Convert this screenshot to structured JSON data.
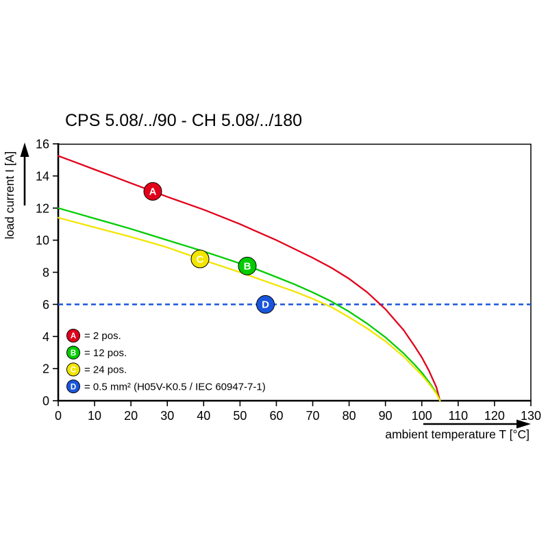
{
  "chart_data": {
    "type": "line",
    "title": "CPS 5.08/../90 - CH 5.08/../180",
    "xlabel": "ambient temperature T [°C]",
    "ylabel": "load current I [A]",
    "xlim": [
      0,
      130
    ],
    "ylim": [
      0,
      16
    ],
    "x_ticks": [
      0,
      10,
      20,
      30,
      40,
      50,
      60,
      70,
      80,
      90,
      100,
      110,
      120,
      130
    ],
    "y_ticks": [
      0,
      2,
      4,
      6,
      8,
      10,
      12,
      14,
      16
    ],
    "grid": false,
    "legend_position": "lower-left-inside",
    "series": [
      {
        "name": "A",
        "label": "= 2 pos.",
        "color": "#e2001a",
        "points": [
          [
            0,
            15.25
          ],
          [
            5,
            14.83
          ],
          [
            10,
            14.4
          ],
          [
            15,
            13.98
          ],
          [
            20,
            13.55
          ],
          [
            25,
            13.13
          ],
          [
            30,
            12.7
          ],
          [
            35,
            12.3
          ],
          [
            40,
            11.9
          ],
          [
            45,
            11.45
          ],
          [
            50,
            11.0
          ],
          [
            55,
            10.5
          ],
          [
            60,
            10.0
          ],
          [
            65,
            9.45
          ],
          [
            70,
            8.9
          ],
          [
            75,
            8.3
          ],
          [
            80,
            7.6
          ],
          [
            85,
            6.75
          ],
          [
            90,
            5.7
          ],
          [
            95,
            4.4
          ],
          [
            98,
            3.4
          ],
          [
            100,
            2.7
          ],
          [
            102,
            1.85
          ],
          [
            104,
            0.85
          ],
          [
            105,
            0
          ]
        ]
      },
      {
        "name": "B",
        "label": "= 12 pos.",
        "color": "#00cc00",
        "points": [
          [
            0,
            12.0
          ],
          [
            5,
            11.68
          ],
          [
            10,
            11.35
          ],
          [
            15,
            11.03
          ],
          [
            20,
            10.7
          ],
          [
            25,
            10.35
          ],
          [
            30,
            10.0
          ],
          [
            35,
            9.65
          ],
          [
            40,
            9.3
          ],
          [
            45,
            8.93
          ],
          [
            50,
            8.55
          ],
          [
            55,
            8.15
          ],
          [
            60,
            7.7
          ],
          [
            65,
            7.25
          ],
          [
            70,
            6.75
          ],
          [
            75,
            6.2
          ],
          [
            80,
            5.55
          ],
          [
            85,
            4.8
          ],
          [
            90,
            3.95
          ],
          [
            95,
            2.95
          ],
          [
            98,
            2.25
          ],
          [
            100,
            1.75
          ],
          [
            102,
            1.15
          ],
          [
            104,
            0.5
          ],
          [
            105,
            0
          ]
        ]
      },
      {
        "name": "C",
        "label": "= 24 pos.",
        "color": "#f2e500",
        "points": [
          [
            0,
            11.4
          ],
          [
            5,
            11.1
          ],
          [
            10,
            10.8
          ],
          [
            15,
            10.5
          ],
          [
            20,
            10.2
          ],
          [
            25,
            9.88
          ],
          [
            30,
            9.55
          ],
          [
            35,
            9.15
          ],
          [
            40,
            8.75
          ],
          [
            45,
            8.38
          ],
          [
            50,
            8.0
          ],
          [
            55,
            7.6
          ],
          [
            60,
            7.2
          ],
          [
            65,
            6.8
          ],
          [
            70,
            6.35
          ],
          [
            75,
            5.85
          ],
          [
            80,
            5.2
          ],
          [
            85,
            4.5
          ],
          [
            90,
            3.7
          ],
          [
            95,
            2.75
          ],
          [
            98,
            2.05
          ],
          [
            100,
            1.6
          ],
          [
            102,
            1.05
          ],
          [
            104,
            0.45
          ],
          [
            105,
            0
          ]
        ]
      }
    ],
    "reference_line": {
      "name": "D",
      "y": 6,
      "style": "dashed",
      "color": "#1a56db",
      "label": "= 0.5 mm² (H05V-K0.5 / IEC 60947-7-1)"
    },
    "markers": [
      {
        "label": "A",
        "x": 26,
        "y": 13.04,
        "color": "#e2001a"
      },
      {
        "label": "C",
        "x": 39,
        "y": 8.83,
        "color": "#f2e500"
      },
      {
        "label": "B",
        "x": 52,
        "y": 8.39,
        "color": "#00cc00"
      },
      {
        "label": "D",
        "x": 57,
        "y": 6.0,
        "color": "#1a56db"
      }
    ],
    "legend": [
      {
        "key": "A",
        "color": "#e2001a",
        "text": "= 2 pos."
      },
      {
        "key": "B",
        "color": "#00cc00",
        "text": "= 12 pos."
      },
      {
        "key": "C",
        "color": "#f2e500",
        "text": "= 24 pos."
      },
      {
        "key": "D",
        "color": "#1a56db",
        "text": "= 0.5 mm² (H05V-K0.5 / IEC 60947-7-1)"
      }
    ]
  }
}
